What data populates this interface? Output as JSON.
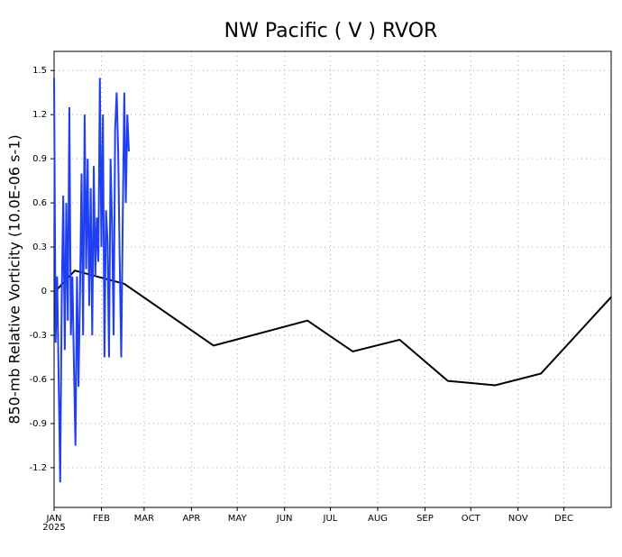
{
  "chart_data": {
    "type": "line",
    "title": "NW Pacific ( V ) RVOR",
    "ylabel": "850-mb Relative Vorticity (10.0E-06 s-1)",
    "year_label": "2025",
    "xlim": [
      0,
      365
    ],
    "xticks": [
      {
        "value": 0,
        "label": "JAN"
      },
      {
        "value": 31,
        "label": "FEB"
      },
      {
        "value": 59,
        "label": "MAR"
      },
      {
        "value": 90,
        "label": "APR"
      },
      {
        "value": 120,
        "label": "MAY"
      },
      {
        "value": 151,
        "label": "JUN"
      },
      {
        "value": 181,
        "label": "JUL"
      },
      {
        "value": 212,
        "label": "AUG"
      },
      {
        "value": 243,
        "label": "SEP"
      },
      {
        "value": 273,
        "label": "OCT"
      },
      {
        "value": 304,
        "label": "NOV"
      },
      {
        "value": 334,
        "label": "DEC"
      }
    ],
    "ylim": [
      -1.47,
      1.63
    ],
    "yticks": [
      1.5,
      1.2,
      0.9,
      0.6,
      0.3,
      0,
      -0.3,
      -0.6,
      -0.9,
      -1.2
    ],
    "grid": true,
    "series": [
      {
        "color": "#000000",
        "x": [
          0,
          13.6,
          46,
          104.5,
          166,
          195.7,
          226.4,
          258,
          289,
          319,
          365
        ],
        "values": [
          -0.01,
          0.14,
          0.05,
          -0.37,
          -0.2,
          -0.41,
          -0.33,
          -0.61,
          -0.64,
          -0.56,
          -0.04
        ]
      },
      {
        "color": "#1f3ff0",
        "x": [
          0,
          1,
          2,
          3,
          4,
          5,
          6,
          7,
          8,
          9,
          10,
          11,
          12,
          13,
          14,
          15,
          16,
          17,
          18,
          19,
          20,
          21,
          22,
          23,
          24,
          25,
          26,
          27,
          28,
          29,
          30,
          31,
          32,
          33,
          34,
          35,
          36,
          37,
          38,
          39,
          40,
          41,
          42,
          43,
          44,
          45,
          46,
          47,
          48,
          49
        ],
        "values": [
          1.45,
          -0.35,
          0.1,
          -0.6,
          -1.3,
          -0.05,
          0.65,
          -0.4,
          0.6,
          -0.2,
          1.25,
          -0.3,
          0.1,
          -0.5,
          -1.05,
          0.1,
          -0.65,
          0.0,
          0.8,
          -0.3,
          1.2,
          0.15,
          0.9,
          -0.1,
          0.7,
          -0.3,
          0.85,
          0.1,
          0.5,
          0.2,
          1.45,
          0.3,
          1.2,
          -0.45,
          0.55,
          0.35,
          -0.45,
          0.9,
          0.45,
          -0.3,
          1.1,
          1.35,
          0.95,
          0.2,
          -0.45,
          0.5,
          1.35,
          0.6,
          1.2,
          0.95
        ]
      }
    ]
  }
}
